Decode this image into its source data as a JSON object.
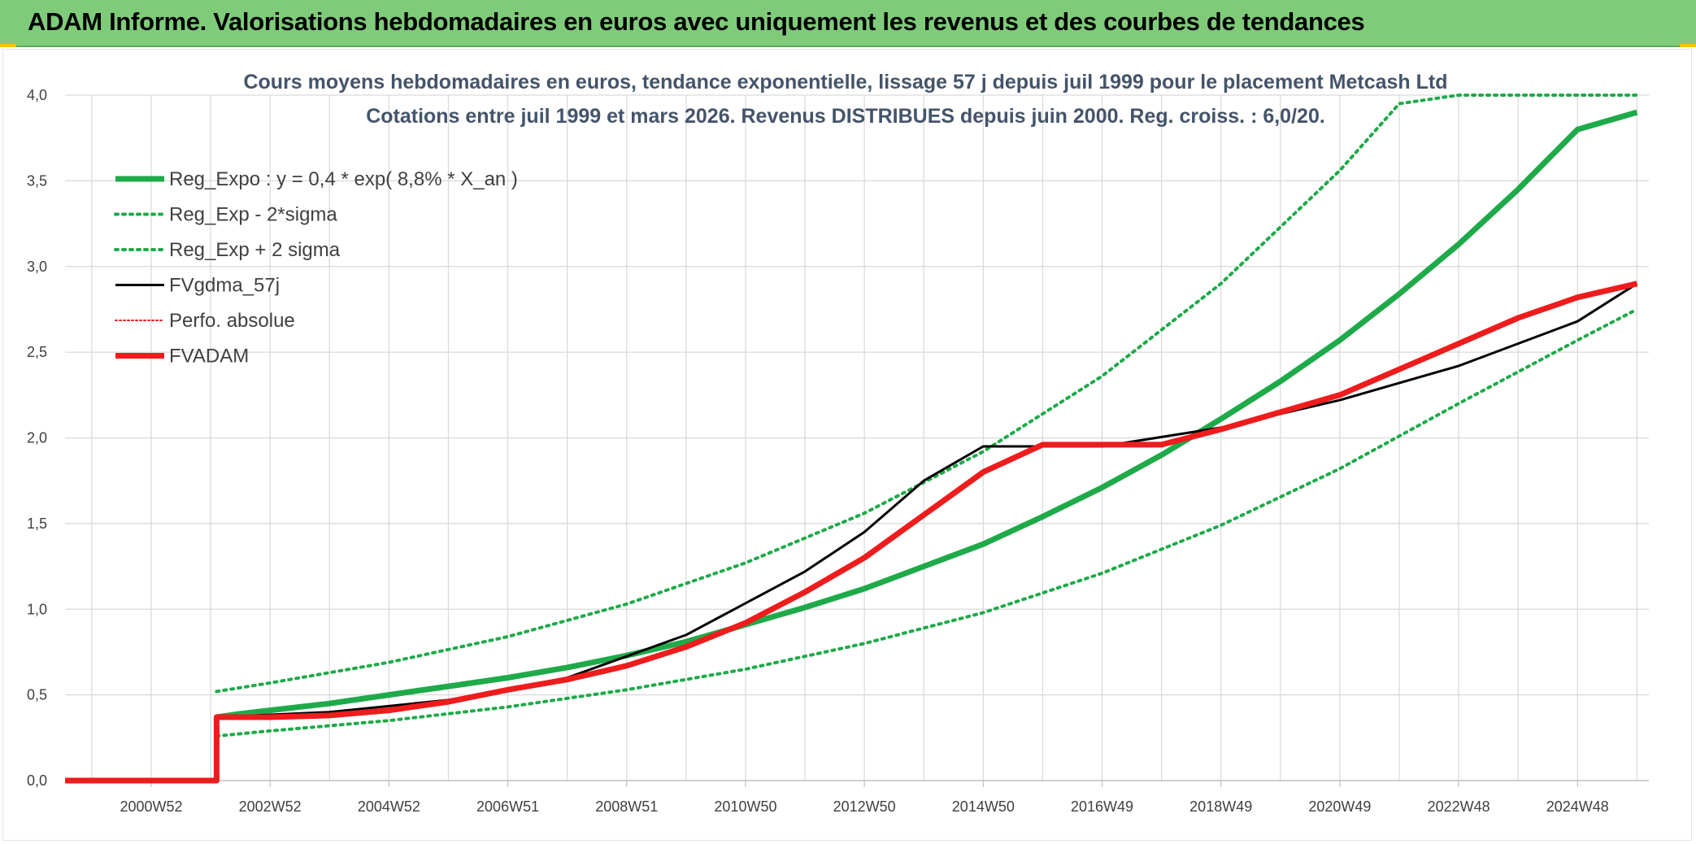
{
  "header": {
    "banner_title": "ADAM Informe. Valorisations hebdomadaires en euros avec uniquement les revenus et des courbes de tendances"
  },
  "colors": {
    "banner": "#7fcb7a",
    "reg_expo": "#1faa4a",
    "sigma": "#1faa4a",
    "fvgdma": "#000000",
    "perfo": "#e02020",
    "fvadam": "#ee1c1c",
    "grid": "#d9d9d9"
  },
  "chart_data": {
    "type": "line",
    "title_line1": "Cours moyens hebdomadaires en euros, tendance exponentielle, lissage 57 j depuis juil 1999 pour le placement Metcash Ltd",
    "title_line2": "Cotations entre juil 1999 et mars 2026. Revenus DISTRIBUES depuis juin 2000. Reg. croiss. : 6,0/20.",
    "ylim": [
      0,
      4
    ],
    "y_ticks": [
      "0,0",
      "0,5",
      "1,0",
      "1,5",
      "2,0",
      "2,5",
      "3,0",
      "3,5",
      "4,0"
    ],
    "x_range": [
      1999.55,
      2026.2
    ],
    "x_ticks": [
      {
        "label": "2000W52",
        "x": 2001.0
      },
      {
        "label": "2002W52",
        "x": 2003.0
      },
      {
        "label": "2004W52",
        "x": 2005.0
      },
      {
        "label": "2006W51",
        "x": 2007.0
      },
      {
        "label": "2008W51",
        "x": 2009.0
      },
      {
        "label": "2010W50",
        "x": 2011.0
      },
      {
        "label": "2012W50",
        "x": 2013.0
      },
      {
        "label": "2014W50",
        "x": 2015.0
      },
      {
        "label": "2016W49",
        "x": 2017.0
      },
      {
        "label": "2018W49",
        "x": 2019.0
      },
      {
        "label": "2020W49",
        "x": 2021.0
      },
      {
        "label": "2022W48",
        "x": 2023.0
      },
      {
        "label": "2024W48",
        "x": 2025.0
      }
    ],
    "legend": [
      {
        "label": "Reg_Expo : y = 0,4 * exp( 8,8% *  X_an )",
        "style": "solid-thick",
        "color": "#1faa4a"
      },
      {
        "label": "Reg_Exp - 2*sigma",
        "style": "dotted",
        "color": "#1faa4a"
      },
      {
        "label": "Reg_Exp + 2 sigma",
        "style": "dotted",
        "color": "#1faa4a"
      },
      {
        "label": "FVgdma_57j",
        "style": "solid",
        "color": "#000000"
      },
      {
        "label": "Perfo. absolue",
        "style": "dotted-thin",
        "color": "#e02020"
      },
      {
        "label": "FVADAM",
        "style": "solid-thick",
        "color": "#ee1c1c"
      }
    ],
    "series": [
      {
        "name": "Reg_Expo : y = 0,4 * exp( 8,8% *  X_an )",
        "x": [
          2002.1,
          2002.5,
          2003.0,
          2004.0,
          2005.0,
          2006.0,
          2007.0,
          2008.0,
          2009.0,
          2010.0,
          2011.0,
          2012.0,
          2013.0,
          2014.0,
          2015.0,
          2016.0,
          2017.0,
          2018.0,
          2019.0,
          2020.0,
          2021.0,
          2022.0,
          2023.0,
          2024.0,
          2025.0,
          2026.0
        ],
        "y": [
          0.37,
          0.39,
          0.41,
          0.45,
          0.5,
          0.55,
          0.6,
          0.66,
          0.73,
          0.81,
          0.91,
          1.01,
          1.12,
          1.25,
          1.38,
          1.54,
          1.71,
          1.9,
          2.11,
          2.33,
          2.57,
          2.84,
          3.13,
          3.45,
          3.8,
          3.9
        ]
      },
      {
        "name": "Reg_Exp - 2*sigma",
        "x": [
          2002.1,
          2003.0,
          2005.0,
          2007.0,
          2009.0,
          2011.0,
          2013.0,
          2015.0,
          2017.0,
          2019.0,
          2021.0,
          2023.0,
          2025.0,
          2026.0
        ],
        "y": [
          0.26,
          0.29,
          0.35,
          0.43,
          0.53,
          0.65,
          0.8,
          0.98,
          1.21,
          1.49,
          1.82,
          2.2,
          2.57,
          2.75
        ]
      },
      {
        "name": "Reg_Exp + 2 sigma",
        "x": [
          2002.1,
          2003.0,
          2005.0,
          2007.0,
          2009.0,
          2011.0,
          2013.0,
          2015.0,
          2017.0,
          2019.0,
          2021.0,
          2022.0,
          2023.0,
          2026.0
        ],
        "y": [
          0.52,
          0.57,
          0.69,
          0.84,
          1.03,
          1.27,
          1.56,
          1.92,
          2.36,
          2.9,
          3.56,
          3.95,
          4.0,
          4.0
        ]
      },
      {
        "name": "FVgdma_57j",
        "x": [
          1999.55,
          2002.1,
          2002.1,
          2004.0,
          2006.0,
          2008.0,
          2010.0,
          2012.0,
          2013.0,
          2014.0,
          2015.0,
          2017.0,
          2019.0,
          2021.0,
          2023.0,
          2025.0,
          2026.0
        ],
        "y": [
          0.0,
          0.0,
          0.37,
          0.4,
          0.47,
          0.6,
          0.85,
          1.22,
          1.45,
          1.75,
          1.95,
          1.95,
          2.06,
          2.22,
          2.42,
          2.68,
          2.9
        ]
      },
      {
        "name": "FVADAM",
        "x": [
          1999.55,
          2002.1,
          2002.1,
          2003.0,
          2004.0,
          2005.0,
          2006.0,
          2007.0,
          2008.0,
          2009.0,
          2010.0,
          2011.0,
          2012.0,
          2013.0,
          2014.0,
          2015.0,
          2016.0,
          2017.0,
          2018.0,
          2019.0,
          2020.0,
          2021.0,
          2022.0,
          2023.0,
          2024.0,
          2025.0,
          2026.0
        ],
        "y": [
          0.0,
          0.0,
          0.37,
          0.37,
          0.38,
          0.41,
          0.46,
          0.53,
          0.59,
          0.67,
          0.78,
          0.92,
          1.1,
          1.3,
          1.55,
          1.8,
          1.96,
          1.96,
          1.96,
          2.05,
          2.15,
          2.25,
          2.4,
          2.55,
          2.7,
          2.82,
          2.9
        ]
      }
    ]
  }
}
